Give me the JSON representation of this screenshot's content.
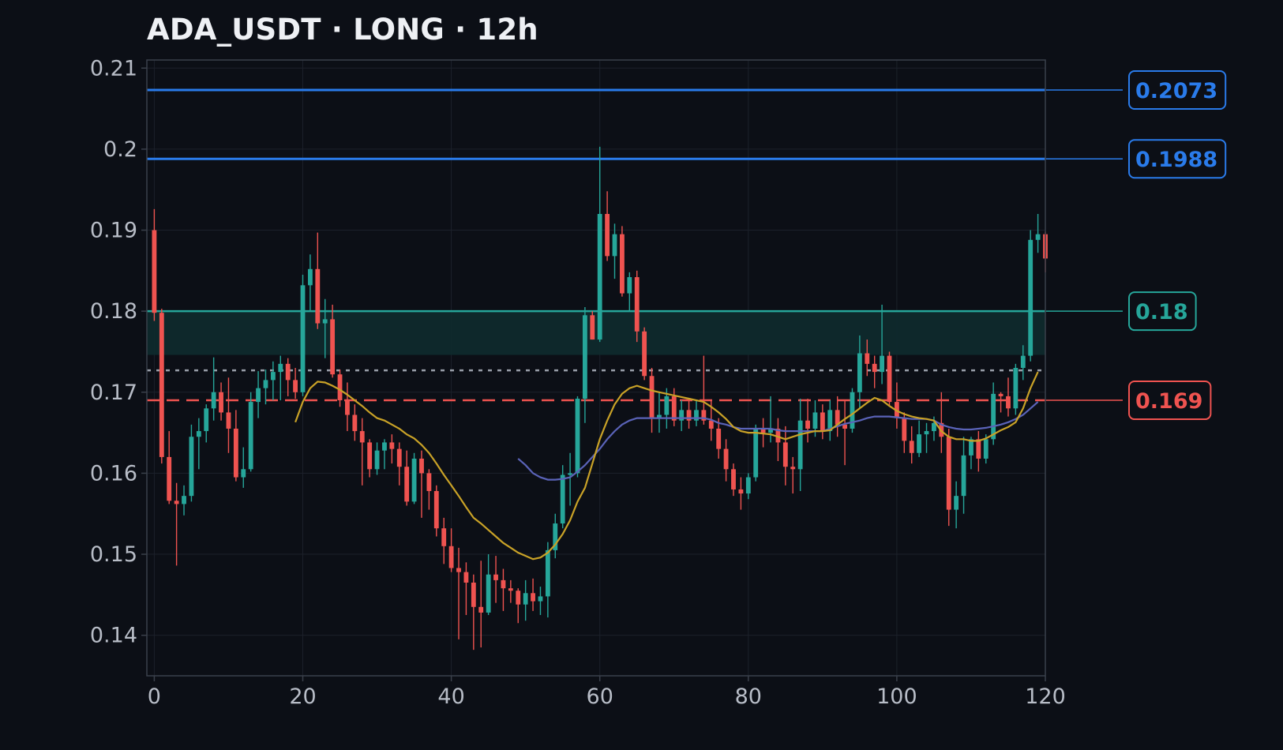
{
  "title": "ADA_USDT · LONG · 12h",
  "colors": {
    "background": "#0c0f16",
    "grid": "#1c212b",
    "axis": "#3a404b",
    "up": "#26a69a",
    "down": "#ef5350",
    "resistance": "#2a7bea",
    "target": "#26a69a",
    "stop": "#ef5350",
    "entry": "#9aa0aa",
    "ma_fast": "#c9a227",
    "ma_slow": "#5a63b8",
    "zone": "#0f2a2c"
  },
  "chart_data": {
    "type": "candlestick",
    "title": "ADA_USDT · LONG · 12h",
    "xlim": [
      -1,
      120
    ],
    "ylim": [
      0.135,
      0.211
    ],
    "xticks": [
      0,
      20,
      40,
      60,
      80,
      100,
      120
    ],
    "yticks": [
      0.14,
      0.15,
      0.16,
      0.17,
      0.18,
      0.19,
      0.2,
      0.21
    ],
    "ytick_labels": [
      "0.14",
      "0.15",
      "0.16",
      "0.17",
      "0.18",
      "0.19",
      "0.2",
      "0.21"
    ],
    "grid": true,
    "candles": [
      [
        0.19,
        0.1926,
        0.1788,
        0.1798
      ],
      [
        0.1798,
        0.1803,
        0.1612,
        0.162
      ],
      [
        0.162,
        0.1652,
        0.1562,
        0.1566
      ],
      [
        0.1566,
        0.1588,
        0.1486,
        0.1562
      ],
      [
        0.1562,
        0.1585,
        0.1548,
        0.1572
      ],
      [
        0.1572,
        0.166,
        0.1565,
        0.1645
      ],
      [
        0.1645,
        0.1668,
        0.1605,
        0.1652
      ],
      [
        0.1652,
        0.1685,
        0.1638,
        0.168
      ],
      [
        0.168,
        0.1743,
        0.1665,
        0.17
      ],
      [
        0.17,
        0.1712,
        0.1665,
        0.1675
      ],
      [
        0.1675,
        0.1718,
        0.1625,
        0.1655
      ],
      [
        0.1655,
        0.1678,
        0.159,
        0.1595
      ],
      [
        0.1595,
        0.1632,
        0.1582,
        0.1605
      ],
      [
        0.1605,
        0.17,
        0.1602,
        0.1688
      ],
      [
        0.1688,
        0.1726,
        0.1668,
        0.1705
      ],
      [
        0.1705,
        0.1728,
        0.1685,
        0.1715
      ],
      [
        0.1715,
        0.1738,
        0.169,
        0.1725
      ],
      [
        0.1725,
        0.1745,
        0.169,
        0.1735
      ],
      [
        0.1735,
        0.1742,
        0.1695,
        0.1715
      ],
      [
        0.1715,
        0.173,
        0.1692,
        0.17
      ],
      [
        0.17,
        0.1845,
        0.1695,
        0.1832
      ],
      [
        0.1832,
        0.187,
        0.18,
        0.1852
      ],
      [
        0.1852,
        0.1897,
        0.1778,
        0.1785
      ],
      [
        0.1785,
        0.1815,
        0.1742,
        0.179
      ],
      [
        0.179,
        0.1808,
        0.1718,
        0.1722
      ],
      [
        0.1722,
        0.1728,
        0.1682,
        0.169
      ],
      [
        0.169,
        0.1712,
        0.1652,
        0.1672
      ],
      [
        0.1672,
        0.1685,
        0.164,
        0.1652
      ],
      [
        0.1652,
        0.1668,
        0.1585,
        0.1638
      ],
      [
        0.1638,
        0.1642,
        0.1595,
        0.1605
      ],
      [
        0.1605,
        0.1638,
        0.1598,
        0.1628
      ],
      [
        0.1628,
        0.1642,
        0.1605,
        0.1638
      ],
      [
        0.1638,
        0.1648,
        0.1612,
        0.163
      ],
      [
        0.163,
        0.1638,
        0.1585,
        0.1608
      ],
      [
        0.1608,
        0.1628,
        0.156,
        0.1565
      ],
      [
        0.1565,
        0.1625,
        0.1562,
        0.1618
      ],
      [
        0.1618,
        0.1628,
        0.1545,
        0.16
      ],
      [
        0.16,
        0.1605,
        0.1555,
        0.1578
      ],
      [
        0.1578,
        0.1585,
        0.1522,
        0.1532
      ],
      [
        0.1532,
        0.1545,
        0.1488,
        0.151
      ],
      [
        0.151,
        0.1532,
        0.1478,
        0.1483
      ],
      [
        0.1483,
        0.1508,
        0.1395,
        0.1478
      ],
      [
        0.1478,
        0.149,
        0.1425,
        0.1465
      ],
      [
        0.1465,
        0.1475,
        0.1382,
        0.1435
      ],
      [
        0.1435,
        0.1492,
        0.1385,
        0.1428
      ],
      [
        0.1428,
        0.15,
        0.1425,
        0.1475
      ],
      [
        0.1475,
        0.1498,
        0.144,
        0.1468
      ],
      [
        0.1468,
        0.1482,
        0.143,
        0.1458
      ],
      [
        0.1458,
        0.1468,
        0.144,
        0.1455
      ],
      [
        0.1455,
        0.1458,
        0.1415,
        0.1438
      ],
      [
        0.1438,
        0.1468,
        0.1418,
        0.1452
      ],
      [
        0.1452,
        0.147,
        0.143,
        0.1442
      ],
      [
        0.1442,
        0.146,
        0.1425,
        0.1448
      ],
      [
        0.1448,
        0.1515,
        0.1422,
        0.1505
      ],
      [
        0.1505,
        0.155,
        0.1495,
        0.1538
      ],
      [
        0.1538,
        0.161,
        0.1532,
        0.1598
      ],
      [
        0.1598,
        0.1625,
        0.156,
        0.16
      ],
      [
        0.16,
        0.1695,
        0.1595,
        0.1692
      ],
      [
        0.1692,
        0.1805,
        0.1662,
        0.1795
      ],
      [
        0.1795,
        0.18,
        0.1765,
        0.1765
      ],
      [
        0.1765,
        0.2003,
        0.1762,
        0.192
      ],
      [
        0.192,
        0.1948,
        0.1862,
        0.1868
      ],
      [
        0.1868,
        0.1908,
        0.184,
        0.1895
      ],
      [
        0.1895,
        0.1905,
        0.1818,
        0.1822
      ],
      [
        0.1822,
        0.1848,
        0.18,
        0.1842
      ],
      [
        0.1842,
        0.185,
        0.1762,
        0.1775
      ],
      [
        0.1775,
        0.178,
        0.1715,
        0.172
      ],
      [
        0.172,
        0.173,
        0.165,
        0.1668
      ],
      [
        0.1668,
        0.17,
        0.165,
        0.1672
      ],
      [
        0.1672,
        0.1705,
        0.1655,
        0.1695
      ],
      [
        0.1695,
        0.1705,
        0.1658,
        0.1665
      ],
      [
        0.1665,
        0.169,
        0.1652,
        0.1678
      ],
      [
        0.1678,
        0.169,
        0.1655,
        0.1665
      ],
      [
        0.1665,
        0.169,
        0.1658,
        0.1678
      ],
      [
        0.1678,
        0.1745,
        0.166,
        0.1665
      ],
      [
        0.1665,
        0.169,
        0.164,
        0.1655
      ],
      [
        0.1655,
        0.1668,
        0.1618,
        0.163
      ],
      [
        0.163,
        0.1642,
        0.159,
        0.1605
      ],
      [
        0.1605,
        0.1612,
        0.1572,
        0.158
      ],
      [
        0.158,
        0.1595,
        0.1555,
        0.1575
      ],
      [
        0.1575,
        0.16,
        0.1568,
        0.1595
      ],
      [
        0.1595,
        0.166,
        0.159,
        0.1655
      ],
      [
        0.1655,
        0.1668,
        0.1632,
        0.165
      ],
      [
        0.165,
        0.1695,
        0.1638,
        0.1655
      ],
      [
        0.1655,
        0.1668,
        0.1615,
        0.1638
      ],
      [
        0.1638,
        0.1658,
        0.1585,
        0.1608
      ],
      [
        0.1608,
        0.162,
        0.1575,
        0.1605
      ],
      [
        0.1605,
        0.1692,
        0.1578,
        0.1665
      ],
      [
        0.1665,
        0.1692,
        0.1638,
        0.1655
      ],
      [
        0.1655,
        0.169,
        0.1645,
        0.1675
      ],
      [
        0.1675,
        0.1685,
        0.1642,
        0.1652
      ],
      [
        0.1652,
        0.169,
        0.164,
        0.1678
      ],
      [
        0.1678,
        0.1695,
        0.1645,
        0.166
      ],
      [
        0.166,
        0.169,
        0.161,
        0.1655
      ],
      [
        0.1655,
        0.1705,
        0.165,
        0.17
      ],
      [
        0.17,
        0.177,
        0.168,
        0.1748
      ],
      [
        0.1748,
        0.1765,
        0.172,
        0.1735
      ],
      [
        0.1735,
        0.1745,
        0.1705,
        0.1725
      ],
      [
        0.1725,
        0.1808,
        0.171,
        0.1745
      ],
      [
        0.1745,
        0.175,
        0.1682,
        0.1688
      ],
      [
        0.1688,
        0.1712,
        0.1655,
        0.1668
      ],
      [
        0.1668,
        0.1675,
        0.1625,
        0.164
      ],
      [
        0.164,
        0.1658,
        0.1612,
        0.1625
      ],
      [
        0.1625,
        0.1665,
        0.162,
        0.1648
      ],
      [
        0.1648,
        0.1662,
        0.1625,
        0.1652
      ],
      [
        0.1652,
        0.167,
        0.164,
        0.1662
      ],
      [
        0.1662,
        0.17,
        0.1625,
        0.1645
      ],
      [
        0.1645,
        0.1655,
        0.1535,
        0.1555
      ],
      [
        0.1555,
        0.159,
        0.1532,
        0.1572
      ],
      [
        0.1572,
        0.1645,
        0.155,
        0.1622
      ],
      [
        0.1622,
        0.1645,
        0.1605,
        0.1642
      ],
      [
        0.1642,
        0.1652,
        0.1602,
        0.1618
      ],
      [
        0.1618,
        0.1648,
        0.1612,
        0.1642
      ],
      [
        0.1642,
        0.1712,
        0.1635,
        0.1698
      ],
      [
        0.1698,
        0.17,
        0.1675,
        0.1695
      ],
      [
        0.1695,
        0.1718,
        0.167,
        0.168
      ],
      [
        0.168,
        0.1735,
        0.1672,
        0.173
      ],
      [
        0.173,
        0.1758,
        0.1715,
        0.1745
      ],
      [
        0.1745,
        0.19,
        0.1738,
        0.1888
      ],
      [
        0.1888,
        0.192,
        0.1872,
        0.1895
      ],
      [
        0.1895,
        0.1898,
        0.1848,
        0.1865
      ]
    ],
    "ma_fast": [
      [
        19,
        0.1663
      ],
      [
        20,
        0.1688
      ],
      [
        21,
        0.1705
      ],
      [
        22,
        0.1713
      ],
      [
        23,
        0.1712
      ],
      [
        24,
        0.1708
      ],
      [
        25,
        0.1703
      ],
      [
        26,
        0.1697
      ],
      [
        27,
        0.169
      ],
      [
        28,
        0.1683
      ],
      [
        29,
        0.1675
      ],
      [
        30,
        0.1668
      ],
      [
        31,
        0.1665
      ],
      [
        32,
        0.166
      ],
      [
        33,
        0.1655
      ],
      [
        34,
        0.1648
      ],
      [
        35,
        0.1643
      ],
      [
        36,
        0.1635
      ],
      [
        37,
        0.1625
      ],
      [
        38,
        0.1612
      ],
      [
        39,
        0.1598
      ],
      [
        40,
        0.1585
      ],
      [
        41,
        0.1572
      ],
      [
        42,
        0.1558
      ],
      [
        43,
        0.1545
      ],
      [
        44,
        0.1538
      ],
      [
        45,
        0.153
      ],
      [
        46,
        0.1522
      ],
      [
        47,
        0.1514
      ],
      [
        48,
        0.1508
      ],
      [
        49,
        0.1502
      ],
      [
        50,
        0.1498
      ],
      [
        51,
        0.1494
      ],
      [
        52,
        0.1496
      ],
      [
        53,
        0.1502
      ],
      [
        54,
        0.1512
      ],
      [
        55,
        0.1525
      ],
      [
        56,
        0.1542
      ],
      [
        57,
        0.1565
      ],
      [
        58,
        0.1582
      ],
      [
        59,
        0.1612
      ],
      [
        60,
        0.1642
      ],
      [
        61,
        0.1665
      ],
      [
        62,
        0.1685
      ],
      [
        63,
        0.1698
      ],
      [
        64,
        0.1705
      ],
      [
        65,
        0.1708
      ],
      [
        66,
        0.1705
      ],
      [
        67,
        0.1702
      ],
      [
        68,
        0.17
      ],
      [
        69,
        0.1698
      ],
      [
        70,
        0.1696
      ],
      [
        71,
        0.1694
      ],
      [
        72,
        0.1692
      ],
      [
        73,
        0.169
      ],
      [
        74,
        0.1688
      ],
      [
        75,
        0.1682
      ],
      [
        76,
        0.1675
      ],
      [
        77,
        0.1667
      ],
      [
        78,
        0.1657
      ],
      [
        79,
        0.1652
      ],
      [
        80,
        0.165
      ],
      [
        81,
        0.165
      ],
      [
        82,
        0.1649
      ],
      [
        83,
        0.1648
      ],
      [
        84,
        0.1645
      ],
      [
        85,
        0.1642
      ],
      [
        86,
        0.1645
      ],
      [
        87,
        0.1648
      ],
      [
        88,
        0.165
      ],
      [
        89,
        0.1652
      ],
      [
        90,
        0.1652
      ],
      [
        91,
        0.1653
      ],
      [
        92,
        0.166
      ],
      [
        93,
        0.1667
      ],
      [
        94,
        0.1673
      ],
      [
        95,
        0.168
      ],
      [
        96,
        0.1687
      ],
      [
        97,
        0.1693
      ],
      [
        98,
        0.169
      ],
      [
        99,
        0.1683
      ],
      [
        100,
        0.1677
      ],
      [
        101,
        0.1673
      ],
      [
        102,
        0.167
      ],
      [
        103,
        0.1668
      ],
      [
        104,
        0.1667
      ],
      [
        105,
        0.1665
      ],
      [
        106,
        0.1652
      ],
      [
        107,
        0.1645
      ],
      [
        108,
        0.1642
      ],
      [
        109,
        0.1642
      ],
      [
        110,
        0.164
      ],
      [
        111,
        0.164
      ],
      [
        112,
        0.1643
      ],
      [
        113,
        0.1648
      ],
      [
        114,
        0.1653
      ],
      [
        115,
        0.1657
      ],
      [
        116,
        0.1663
      ],
      [
        117,
        0.168
      ],
      [
        118,
        0.1705
      ],
      [
        119,
        0.1725
      ]
    ],
    "ma_slow": [
      [
        49,
        0.1618
      ],
      [
        50,
        0.161
      ],
      [
        51,
        0.16
      ],
      [
        52,
        0.1595
      ],
      [
        53,
        0.1592
      ],
      [
        54,
        0.1592
      ],
      [
        55,
        0.1593
      ],
      [
        56,
        0.1595
      ],
      [
        57,
        0.1602
      ],
      [
        58,
        0.161
      ],
      [
        59,
        0.162
      ],
      [
        60,
        0.163
      ],
      [
        61,
        0.1642
      ],
      [
        62,
        0.1652
      ],
      [
        63,
        0.166
      ],
      [
        64,
        0.1665
      ],
      [
        65,
        0.1668
      ],
      [
        66,
        0.1668
      ],
      [
        67,
        0.1668
      ],
      [
        68,
        0.1668
      ],
      [
        69,
        0.1668
      ],
      [
        70,
        0.1668
      ],
      [
        71,
        0.1668
      ],
      [
        72,
        0.1668
      ],
      [
        73,
        0.1668
      ],
      [
        74,
        0.1668
      ],
      [
        75,
        0.1666
      ],
      [
        76,
        0.1662
      ],
      [
        77,
        0.166
      ],
      [
        78,
        0.1657
      ],
      [
        79,
        0.1655
      ],
      [
        80,
        0.1655
      ],
      [
        81,
        0.1655
      ],
      [
        82,
        0.1655
      ],
      [
        83,
        0.1655
      ],
      [
        84,
        0.1653
      ],
      [
        85,
        0.1652
      ],
      [
        86,
        0.1652
      ],
      [
        87,
        0.1652
      ],
      [
        88,
        0.1652
      ],
      [
        89,
        0.1652
      ],
      [
        90,
        0.1652
      ],
      [
        91,
        0.1655
      ],
      [
        92,
        0.1658
      ],
      [
        93,
        0.1661
      ],
      [
        94,
        0.1663
      ],
      [
        95,
        0.1665
      ],
      [
        96,
        0.1668
      ],
      [
        97,
        0.167
      ],
      [
        98,
        0.167
      ],
      [
        99,
        0.167
      ],
      [
        100,
        0.1669
      ],
      [
        101,
        0.1668
      ],
      [
        102,
        0.1667
      ],
      [
        103,
        0.1667
      ],
      [
        104,
        0.1667
      ],
      [
        105,
        0.1665
      ],
      [
        106,
        0.166
      ],
      [
        107,
        0.1657
      ],
      [
        108,
        0.1655
      ],
      [
        109,
        0.1654
      ],
      [
        110,
        0.1654
      ],
      [
        111,
        0.1655
      ],
      [
        112,
        0.1656
      ],
      [
        113,
        0.1658
      ],
      [
        114,
        0.166
      ],
      [
        115,
        0.1663
      ],
      [
        116,
        0.1667
      ],
      [
        117,
        0.1672
      ],
      [
        118,
        0.168
      ],
      [
        119,
        0.1688
      ]
    ],
    "levels": [
      {
        "value": 0.2073,
        "label": "0.2073",
        "role": "resistance",
        "style": "solid"
      },
      {
        "value": 0.1988,
        "label": "0.1988",
        "role": "resistance",
        "style": "solid"
      },
      {
        "value": 0.18,
        "label": "0.18",
        "role": "target",
        "style": "solid"
      },
      {
        "value": 0.169,
        "label": "0.169",
        "role": "stop",
        "style": "dashed"
      }
    ],
    "entry_line": 0.1727,
    "zone": [
      0.1746,
      0.18
    ]
  }
}
